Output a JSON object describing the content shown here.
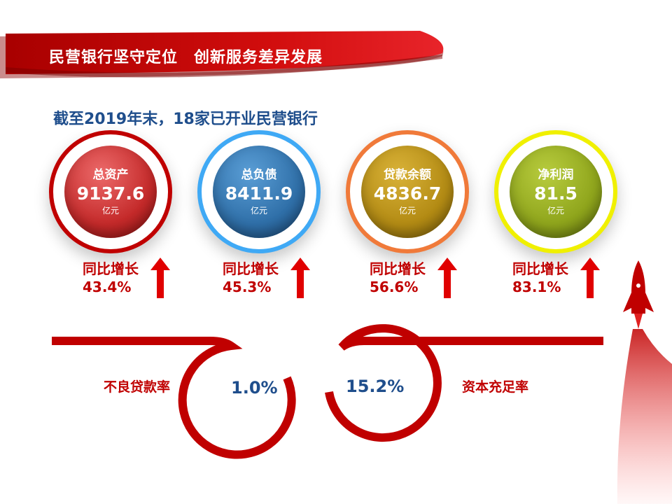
{
  "header": {
    "title": "民营银行坚守定位　创新服务差异发展"
  },
  "subtitle": "截至2019年末，18家已开业民营银行",
  "metrics": [
    {
      "label": "总资产",
      "value": "9137.6",
      "unit": "亿元",
      "growth_label": "同比增长",
      "growth": "43.4%",
      "ring_color": "#c00000",
      "ball_color": "#d43a3a"
    },
    {
      "label": "总负债",
      "value": "8411.9",
      "unit": "亿元",
      "growth_label": "同比增长",
      "growth": "45.3%",
      "ring_color": "#3fa9f5",
      "ball_color": "#2f6fa8"
    },
    {
      "label": "贷款余额",
      "value": "4836.7",
      "unit": "亿元",
      "growth_label": "同比增长",
      "growth": "56.6%",
      "ring_color": "#f07a3a",
      "ball_color": "#b38b14"
    },
    {
      "label": "净利润",
      "value": "81.5",
      "unit": "亿元",
      "growth_label": "同比增长",
      "growth": "83.1%",
      "ring_color": "#f0f000",
      "ball_color": "#8fa51c"
    }
  ],
  "ratios": {
    "npl_label": "不良贷款率",
    "npl_value": "1.0%",
    "car_label": "资本充足率",
    "car_value": "15.2%"
  },
  "colors": {
    "accent_red": "#c00000",
    "title_blue": "#1f4e8c"
  },
  "decor": {
    "rocket": "rocket-icon",
    "growth_arrow": "arrow-up-icon"
  }
}
